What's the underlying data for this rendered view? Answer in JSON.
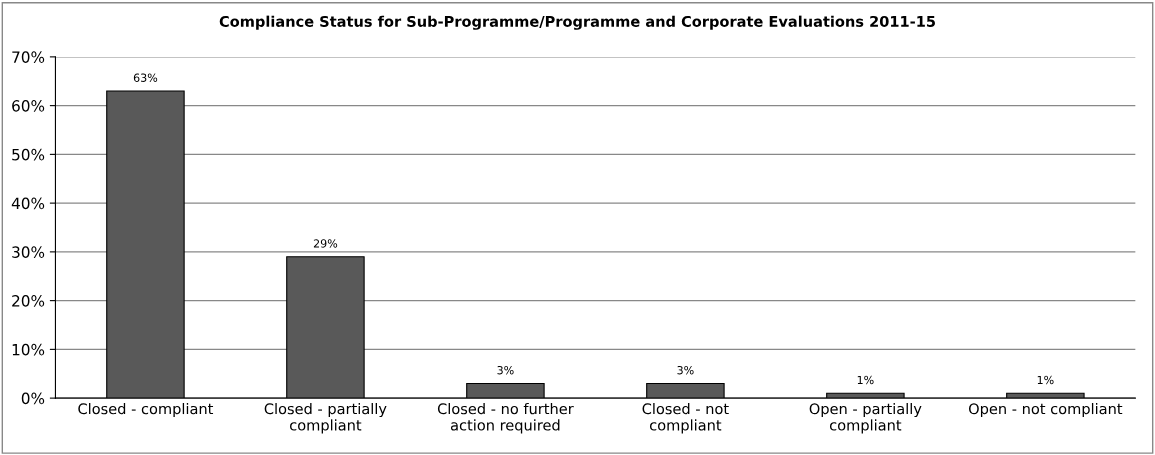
{
  "chart_data": {
    "type": "bar",
    "title": "Compliance Status for Sub-Programme/Programme and Corporate Evaluations 2011-15",
    "categories": [
      "Closed - compliant",
      "Closed - partially\ncompliant",
      "Closed - no further\naction required",
      "Closed - not\ncompliant",
      "Open - partially\ncompliant",
      "Open - not compliant"
    ],
    "values": [
      63,
      29,
      3,
      3,
      1,
      1
    ],
    "value_labels": [
      "63%",
      "29%",
      "3%",
      "3%",
      "1%",
      "1%"
    ],
    "color": "#595959",
    "ylim": [
      0,
      70
    ],
    "yticks": [
      {
        "value": 0,
        "label": "0%"
      },
      {
        "value": 10,
        "label": "10%"
      },
      {
        "value": 20,
        "label": "20%"
      },
      {
        "value": 30,
        "label": "30%"
      },
      {
        "value": 40,
        "label": "40%"
      },
      {
        "value": 50,
        "label": "50%"
      },
      {
        "value": 60,
        "label": "60%"
      },
      {
        "value": 70,
        "label": "70%"
      }
    ],
    "grid": "y"
  }
}
